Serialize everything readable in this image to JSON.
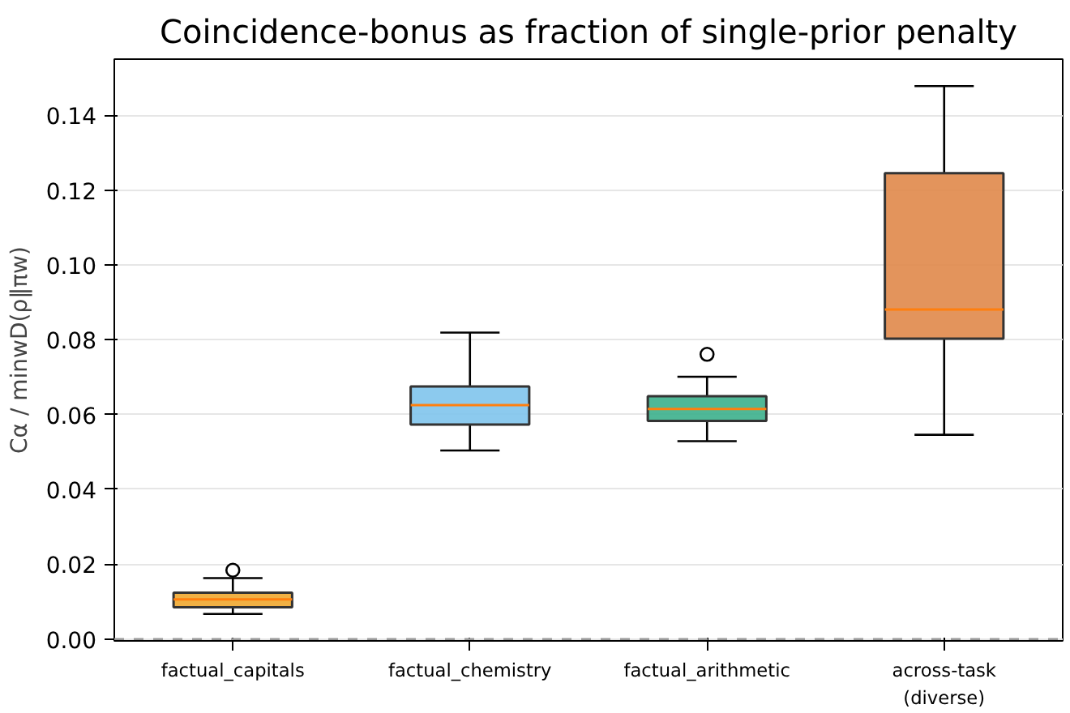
{
  "chart_data": {
    "type": "box",
    "title": "Coincidence-bonus as fraction of single-prior penalty",
    "ylabel": "Cα / minwD(ρ‖πw)",
    "categories": [
      "factual_capitals",
      "factual_chemistry",
      "factual_arithmetic",
      "across-task\n(diverse)"
    ],
    "colors": [
      "#f0a830",
      "#80c4ec",
      "#3cb08c",
      "#e0884a"
    ],
    "boxes": [
      {
        "low": 0.0067,
        "q1": 0.0085,
        "median": 0.0106,
        "q3": 0.0124,
        "high": 0.0163,
        "outliers": [
          0.0184
        ]
      },
      {
        "low": 0.0504,
        "q1": 0.0573,
        "median": 0.0625,
        "q3": 0.0675,
        "high": 0.0819
      },
      {
        "low": 0.0529,
        "q1": 0.0583,
        "median": 0.0615,
        "q3": 0.0649,
        "high": 0.0701,
        "outliers": [
          0.0761
        ]
      },
      {
        "low": 0.0546,
        "q1": 0.0803,
        "median": 0.0881,
        "q3": 0.1245,
        "high": 0.1478
      }
    ],
    "ylim": [
      -0.0005,
      0.155
    ],
    "yticks": [
      {
        "value": 0,
        "label": "0.00"
      },
      0.02,
      0.04,
      0.06,
      0.08,
      {
        "value": 0.1,
        "label": "0.10"
      },
      0.12,
      0.14
    ],
    "ref_lines": [
      {
        "axis": "y",
        "value": 0,
        "label": null,
        "color": "#999999",
        "line_style": "dashed"
      }
    ],
    "grid": "y"
  }
}
